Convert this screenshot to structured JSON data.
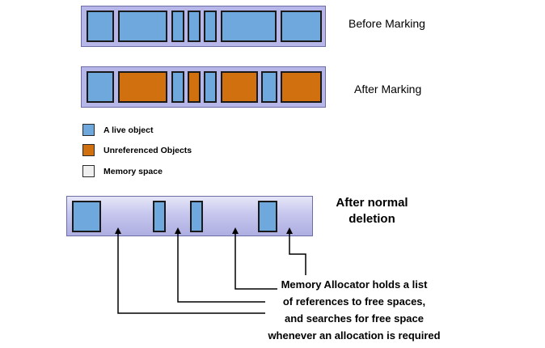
{
  "colors": {
    "live_object": "#6fa8dc",
    "unreferenced_object": "#d1700f",
    "memory_space": "#f0f0f0",
    "heap_bar": "#b6b6e8"
  },
  "rows": {
    "before": {
      "label": "Before Marking",
      "blocks": [
        "live",
        "live",
        "live",
        "live",
        "live",
        "live",
        "live"
      ]
    },
    "after": {
      "label": "After Marking",
      "blocks": [
        "live",
        "unreferenced",
        "live",
        "unreferenced",
        "live",
        "unreferenced",
        "live",
        "unreferenced"
      ]
    }
  },
  "legend": {
    "live": "A live object",
    "unreferenced": "Unreferenced Objects",
    "memory_space": "Memory space"
  },
  "deletion": {
    "title_line1": "After normal",
    "title_line2": "deletion"
  },
  "allocator_note": {
    "line1": "Memory Allocator holds a list",
    "line2": "of references to free spaces,",
    "line3": "and searches for free space",
    "line4": "whenever an allocation is required"
  }
}
